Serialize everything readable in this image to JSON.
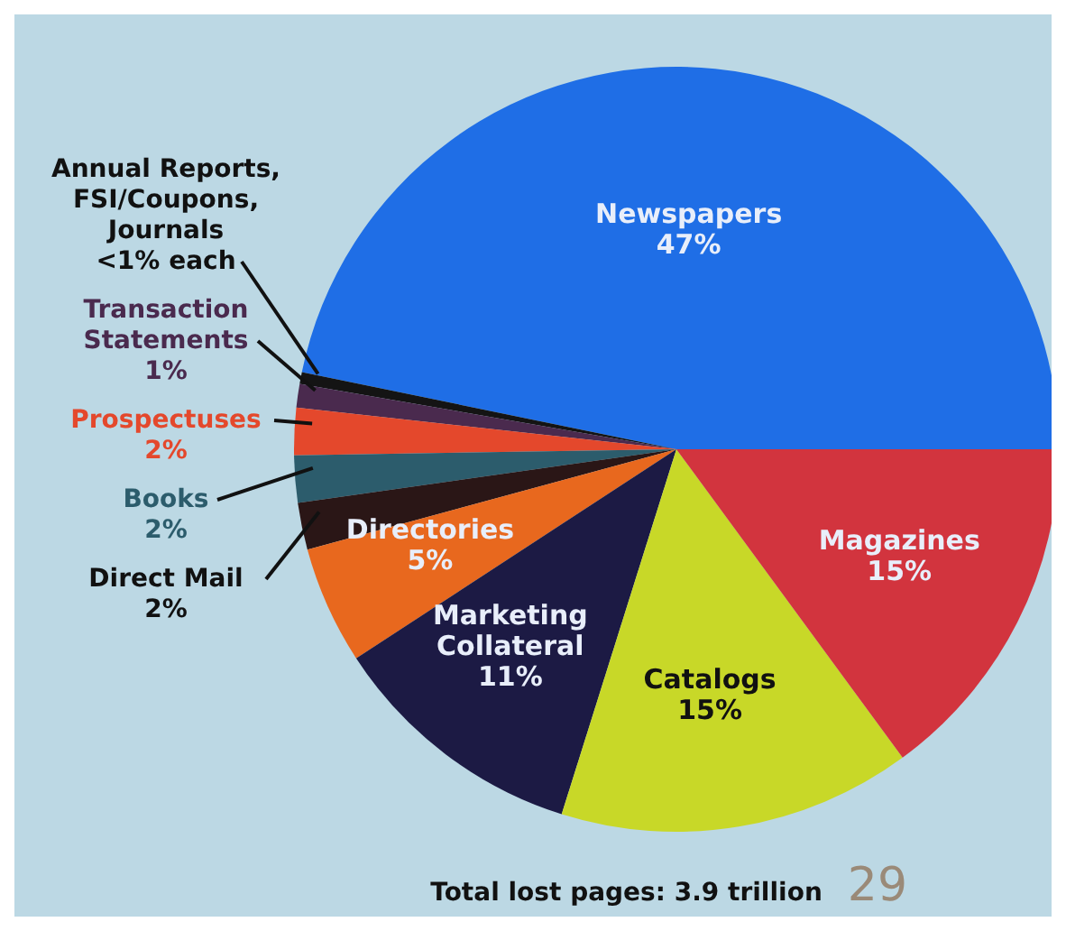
{
  "chart_data": {
    "type": "pie",
    "categories": [
      "Newspapers",
      "Annual Reports, FSI/Coupons, Journals",
      "Transaction Statements",
      "Prospectuses",
      "Books",
      "Direct Mail",
      "Directories",
      "Marketing Collateral",
      "Catalogs",
      "Magazines"
    ],
    "values": [
      47,
      0.5,
      1,
      2,
      2,
      2,
      5,
      11,
      15,
      15
    ],
    "value_labels": [
      "47%",
      "<1% each",
      "1%",
      "2%",
      "2%",
      "2%",
      "5%",
      "11%",
      "15%",
      "15%"
    ],
    "colors": [
      "#1f6ee6",
      "#141414",
      "#4a2a4e",
      "#e4482c",
      "#2c5c6c",
      "#2a1616",
      "#e8681e",
      "#1c1a44",
      "#c8d828",
      "#d2343e"
    ],
    "annotations": [
      "Total lost pages: 3.9 trillion",
      "29"
    ]
  }
}
